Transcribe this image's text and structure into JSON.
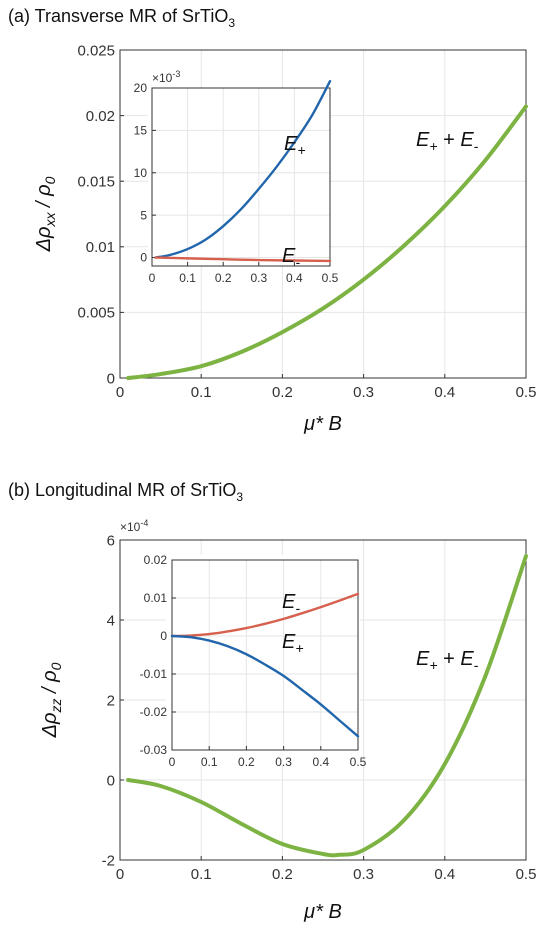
{
  "charts": [
    {
      "id": "a",
      "title_main": "(a) Transverse MR of SrTiO",
      "title_sub": "3",
      "ylabel_main": "Δρ",
      "ylabel_sub": "xx",
      "ylabel_tail": " / ρ",
      "ylabel_tail_sub": "0",
      "xlabel": "μ* B",
      "multiplier": "",
      "multiplier_exp": "",
      "annotation": {
        "a": "E",
        "a_sub": "+",
        "mid": " + ",
        "b": "E",
        "b_sub": "-"
      },
      "inset": {
        "multiplier": "×10",
        "multiplier_exp": "-3",
        "labels": [
          {
            "text": "E",
            "sub": "+"
          },
          {
            "text": "E",
            "sub": "-"
          }
        ]
      }
    },
    {
      "id": "b",
      "title_main": "(b) Longitudinal MR of SrTiO",
      "title_sub": "3",
      "ylabel_main": "Δρ",
      "ylabel_sub": "zz",
      "ylabel_tail": " / ρ",
      "ylabel_tail_sub": "0",
      "xlabel": "μ* B",
      "multiplier": "×10",
      "multiplier_exp": "-4",
      "annotation": {
        "a": "E",
        "a_sub": "+",
        "mid": " + ",
        "b": "E",
        "b_sub": "-"
      },
      "inset": {
        "multiplier": "",
        "multiplier_exp": "",
        "labels": [
          {
            "text": "E",
            "sub": "-"
          },
          {
            "text": "E",
            "sub": "+"
          }
        ]
      }
    }
  ],
  "chart_data": [
    {
      "type": "line",
      "title": "(a) Transverse MR of SrTiO3",
      "xlabel": "μ* B",
      "ylabel": "Δρxx / ρ0",
      "xlim": [
        0,
        0.5
      ],
      "ylim": [
        0,
        0.025
      ],
      "xticks": [
        "0",
        "0.1",
        "0.2",
        "0.3",
        "0.4",
        "0.5"
      ],
      "yticks": [
        "0",
        "0.005",
        "0.01",
        "0.015",
        "0.02",
        "0.025"
      ],
      "grid": true,
      "series": [
        {
          "name": "E+ + E-",
          "color": "#7cb342",
          "x": [
            0.01,
            0.05,
            0.1,
            0.15,
            0.2,
            0.25,
            0.3,
            0.35,
            0.4,
            0.45,
            0.5
          ],
          "y": [
            0,
            0.0003,
            0.0009,
            0.002,
            0.0035,
            0.0053,
            0.0075,
            0.0101,
            0.0131,
            0.0166,
            0.0207
          ]
        }
      ],
      "inset": {
        "type": "line",
        "xlim": [
          0,
          0.5
        ],
        "ylim": [
          -1,
          20
        ],
        "xticks": [
          "0",
          "0.1",
          "0.2",
          "0.3",
          "0.4",
          "0.5"
        ],
        "yticks": [
          "0",
          "5",
          "10",
          "15",
          "20"
        ],
        "y_multiplier": "×10^-3",
        "grid": true,
        "series": [
          {
            "name": "E+",
            "color": "#2166ac",
            "x": [
              0.01,
              0.05,
              0.1,
              0.15,
              0.2,
              0.25,
              0.3,
              0.35,
              0.4,
              0.45,
              0.5
            ],
            "y": [
              0,
              0.3,
              1.0,
              2.1,
              3.7,
              5.7,
              8.1,
              10.7,
              13.6,
              16.8,
              20.8
            ]
          },
          {
            "name": "E-",
            "color": "#d6604d",
            "x": [
              0.01,
              0.1,
              0.2,
              0.3,
              0.4,
              0.5
            ],
            "y": [
              0,
              -0.1,
              -0.2,
              -0.3,
              -0.35,
              -0.4
            ]
          }
        ]
      }
    },
    {
      "type": "line",
      "title": "(b) Longitudinal MR of SrTiO3",
      "xlabel": "μ* B",
      "ylabel": "Δρzz / ρ0",
      "xlim": [
        0,
        0.5
      ],
      "ylim": [
        -2,
        6
      ],
      "y_multiplier": "×10^-4",
      "xticks": [
        "0",
        "0.1",
        "0.2",
        "0.3",
        "0.4",
        "0.5"
      ],
      "yticks": [
        "-2",
        "0",
        "2",
        "4",
        "6"
      ],
      "grid": true,
      "series": [
        {
          "name": "E+ + E-",
          "color": "#7cb342",
          "x": [
            0.01,
            0.05,
            0.1,
            0.15,
            0.2,
            0.25,
            0.27,
            0.3,
            0.35,
            0.4,
            0.45,
            0.5
          ],
          "y": [
            0,
            -0.15,
            -0.55,
            -1.1,
            -1.6,
            -1.85,
            -1.87,
            -1.75,
            -1.0,
            0.4,
            2.6,
            5.6
          ]
        }
      ],
      "inset": {
        "type": "line",
        "xlim": [
          0,
          0.5
        ],
        "ylim": [
          -0.03,
          0.02
        ],
        "xticks": [
          "0",
          "0.1",
          "0.2",
          "0.3",
          "0.4",
          "0.5"
        ],
        "yticks": [
          "-0.03",
          "-0.02",
          "-0.01",
          "0",
          "0.01",
          "0.02"
        ],
        "grid": true,
        "series": [
          {
            "name": "E-",
            "color": "#d6604d",
            "x": [
              0,
              0.05,
              0.1,
              0.15,
              0.2,
              0.25,
              0.3,
              0.35,
              0.4,
              0.45,
              0.5
            ],
            "y": [
              0,
              0.0001,
              0.0005,
              0.0012,
              0.0021,
              0.0032,
              0.0045,
              0.006,
              0.0076,
              0.0093,
              0.0111
            ]
          },
          {
            "name": "E+",
            "color": "#2166ac",
            "x": [
              0,
              0.05,
              0.1,
              0.15,
              0.2,
              0.25,
              0.3,
              0.35,
              0.4,
              0.45,
              0.5
            ],
            "y": [
              0,
              -0.0003,
              -0.0012,
              -0.0027,
              -0.0048,
              -0.0075,
              -0.0105,
              -0.0142,
              -0.018,
              -0.0222,
              -0.0264
            ]
          }
        ]
      }
    }
  ]
}
